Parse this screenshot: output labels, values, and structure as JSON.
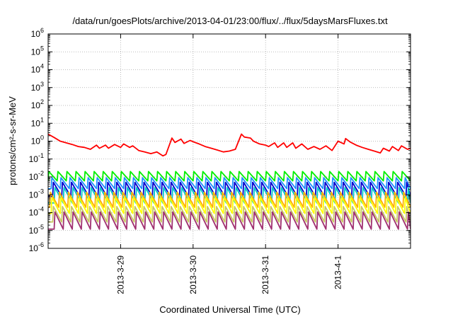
{
  "chart_data": {
    "type": "line",
    "title": "/data/run/goesPlots/archive/2013-04-01/23:00/flux/../flux/5daysMarsFluxes.txt",
    "xlabel": "Coordinated Universal Time (UTC)",
    "ylabel": "protons/cm²-s-sr-MeV",
    "yscale": "log",
    "ylim": [
      1e-06,
      1000000.0
    ],
    "xlim": [
      "2013-03-28T00:00",
      "2013-04-02T00:00"
    ],
    "grid": true,
    "y_ticks": [
      {
        "base": "10",
        "exp": "-6"
      },
      {
        "base": "10",
        "exp": "-5"
      },
      {
        "base": "10",
        "exp": "-4"
      },
      {
        "base": "10",
        "exp": "-3"
      },
      {
        "base": "10",
        "exp": "-2"
      },
      {
        "base": "10",
        "exp": "-1"
      },
      {
        "base": "10",
        "exp": "0"
      },
      {
        "base": "10",
        "exp": "1"
      },
      {
        "base": "10",
        "exp": "2"
      },
      {
        "base": "10",
        "exp": "3"
      },
      {
        "base": "10",
        "exp": "4"
      },
      {
        "base": "10",
        "exp": "5"
      },
      {
        "base": "10",
        "exp": "6"
      }
    ],
    "x_ticks": [
      {
        "label": "2013-3-29",
        "x": "2013-03-29T00:00"
      },
      {
        "label": "2013-3-30",
        "x": "2013-03-30T00:00"
      },
      {
        "label": "2013-3-31",
        "x": "2013-03-31T00:00"
      },
      {
        "label": "2013-4-1",
        "x": "2013-04-01T00:00"
      }
    ],
    "series": [
      {
        "color": "#ff0000",
        "x": [
          "2013-03-28T00:00",
          "2013-03-28T02:00",
          "2013-03-28T04:00",
          "2013-03-28T06:00",
          "2013-03-28T08:00",
          "2013-03-28T10:00",
          "2013-03-28T12:00",
          "2013-03-28T14:00",
          "2013-03-28T16:00",
          "2013-03-28T17:00",
          "2013-03-28T19:00",
          "2013-03-28T20:00",
          "2013-03-28T22:00",
          "2013-03-29T00:00",
          "2013-03-29T01:00",
          "2013-03-29T03:00",
          "2013-03-29T04:00",
          "2013-03-29T06:00",
          "2013-03-29T08:00",
          "2013-03-29T10:00",
          "2013-03-29T12:00",
          "2013-03-29T14:00",
          "2013-03-29T15:00",
          "2013-03-29T17:00",
          "2013-03-29T18:00",
          "2013-03-29T20:00",
          "2013-03-29T21:00",
          "2013-03-29T23:00",
          "2013-03-30T01:00",
          "2013-03-30T02:00",
          "2013-03-30T04:00",
          "2013-03-30T06:00",
          "2013-03-30T08:00",
          "2013-03-30T10:00",
          "2013-03-30T12:00",
          "2013-03-30T14:00",
          "2013-03-30T16:00",
          "2013-03-30T17:00",
          "2013-03-30T19:00",
          "2013-03-30T20:00",
          "2013-03-30T22:00",
          "2013-03-31T00:00",
          "2013-03-31T01:00",
          "2013-03-31T03:00",
          "2013-03-31T04:00",
          "2013-03-31T06:00",
          "2013-03-31T07:00",
          "2013-03-31T09:00",
          "2013-03-31T10:00",
          "2013-03-31T12:00",
          "2013-03-31T14:00",
          "2013-03-31T16:00",
          "2013-03-31T18:00",
          "2013-03-31T20:00",
          "2013-03-31T22:00",
          "2013-04-01T00:00",
          "2013-04-01T02:00",
          "2013-04-01T02:30",
          "2013-04-01T04:00",
          "2013-04-01T06:00",
          "2013-04-01T08:00",
          "2013-04-01T10:00",
          "2013-04-01T12:00",
          "2013-04-01T14:00",
          "2013-04-01T15:00",
          "2013-04-01T17:00",
          "2013-04-01T18:00",
          "2013-04-01T20:00",
          "2013-04-01T21:00",
          "2013-04-01T23:00",
          "2013-04-02T00:00"
        ],
        "y": [
          2.5,
          1.6,
          1.0,
          0.8,
          0.65,
          0.5,
          0.45,
          0.35,
          0.6,
          0.4,
          0.6,
          0.4,
          0.65,
          0.45,
          0.7,
          0.45,
          0.55,
          0.3,
          0.25,
          0.2,
          0.25,
          0.15,
          0.18,
          1.5,
          0.85,
          1.3,
          0.75,
          1.1,
          0.8,
          0.7,
          0.5,
          0.4,
          0.32,
          0.25,
          0.28,
          0.35,
          2.5,
          1.7,
          1.5,
          1.0,
          0.7,
          0.6,
          0.5,
          0.8,
          0.45,
          0.8,
          0.45,
          0.8,
          0.4,
          0.7,
          0.35,
          0.5,
          0.35,
          0.55,
          0.3,
          1.0,
          0.7,
          1.4,
          0.9,
          0.6,
          0.45,
          0.35,
          0.28,
          0.22,
          0.4,
          0.28,
          0.5,
          0.3,
          0.55,
          0.35,
          0.4
        ]
      },
      {
        "color": "#00ee00",
        "base_x": "2013-03-28T00:00",
        "period_h": 3,
        "top": 0.02,
        "bottom": 0.006
      },
      {
        "color": "#1e90ff",
        "base_x": "2013-03-28T01:00",
        "period_h": 3,
        "top": 0.009,
        "bottom": 0.0022
      },
      {
        "color": "#0000cd",
        "base_x": "2013-03-28T01:30",
        "period_h": 3,
        "top": 0.005,
        "bottom": 0.0008
      },
      {
        "color": "#00c8c8",
        "base_x": "2013-03-28T02:00",
        "period_h": 3,
        "top": 0.0025,
        "bottom": 0.00035
      },
      {
        "color": "#ffb000",
        "base_x": "2013-03-28T00:30",
        "period_h": 3,
        "top": 0.0014,
        "bottom": 0.0002
      },
      {
        "color": "#ffff00",
        "base_x": "2013-03-28T01:00",
        "period_h": 3,
        "top": 0.0007,
        "bottom": 9e-05
      },
      {
        "color": "#c8c864",
        "base_x": "2013-03-28T01:30",
        "period_h": 3,
        "top": 0.00022,
        "bottom": 3e-05
      },
      {
        "color": "#a03070",
        "base_x": "2013-03-28T02:00",
        "period_h": 3,
        "top": 0.00011,
        "bottom": 1.2e-05
      }
    ]
  }
}
